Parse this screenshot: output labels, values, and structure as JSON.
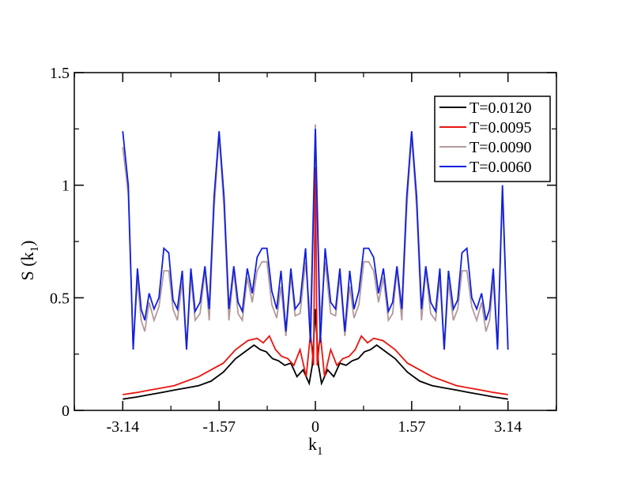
{
  "chart_data": {
    "type": "line",
    "title": "",
    "xlabel": "k",
    "xlabel_sub": "1",
    "ylabel": "S (k",
    "ylabel_sub": "1",
    "ylabel_close": ")",
    "xlim": [
      -3.93,
      3.93
    ],
    "ylim": [
      0,
      1.5
    ],
    "xticks": [
      -3.14,
      -1.57,
      0,
      1.57,
      3.14
    ],
    "xtick_labels": [
      "-3.14",
      "-1.57",
      "0",
      "1.57",
      "3.14"
    ],
    "yticks": [
      0,
      0.5,
      1,
      1.5
    ],
    "ytick_labels": [
      "0",
      "0.5",
      "1",
      "1.5"
    ],
    "grid": false,
    "legend_position": "top-right",
    "series": [
      {
        "name": "T=0.0120",
        "color": "#000000",
        "x": [
          -3.14,
          -2.9,
          -2.7,
          -2.5,
          -2.3,
          -2.1,
          -1.9,
          -1.7,
          -1.5,
          -1.3,
          -1.1,
          -1.0,
          -0.9,
          -0.8,
          -0.7,
          -0.6,
          -0.5,
          -0.4,
          -0.3,
          -0.2,
          -0.1,
          -0.05,
          0,
          0.05,
          0.1,
          0.2,
          0.3,
          0.4,
          0.5,
          0.6,
          0.7,
          0.8,
          0.9,
          1.0,
          1.1,
          1.3,
          1.5,
          1.7,
          1.9,
          2.1,
          2.3,
          2.5,
          2.7,
          2.9,
          3.14
        ],
        "y": [
          0.05,
          0.06,
          0.07,
          0.08,
          0.09,
          0.1,
          0.11,
          0.13,
          0.17,
          0.23,
          0.27,
          0.29,
          0.27,
          0.26,
          0.23,
          0.22,
          0.2,
          0.21,
          0.15,
          0.18,
          0.12,
          0.2,
          0.45,
          0.2,
          0.12,
          0.18,
          0.15,
          0.21,
          0.2,
          0.22,
          0.23,
          0.26,
          0.27,
          0.29,
          0.27,
          0.23,
          0.17,
          0.13,
          0.11,
          0.1,
          0.09,
          0.08,
          0.07,
          0.06,
          0.05
        ]
      },
      {
        "name": "T=0.0095",
        "color": "#e8160f",
        "x": [
          -3.14,
          -2.9,
          -2.7,
          -2.5,
          -2.3,
          -2.1,
          -1.9,
          -1.7,
          -1.5,
          -1.3,
          -1.1,
          -0.95,
          -0.85,
          -0.75,
          -0.65,
          -0.55,
          -0.45,
          -0.35,
          -0.25,
          -0.15,
          -0.08,
          -0.03,
          0,
          0.03,
          0.08,
          0.15,
          0.25,
          0.35,
          0.45,
          0.55,
          0.65,
          0.75,
          0.85,
          0.95,
          1.1,
          1.3,
          1.5,
          1.7,
          1.9,
          2.1,
          2.3,
          2.5,
          2.7,
          2.9,
          3.14
        ],
        "y": [
          0.07,
          0.08,
          0.09,
          0.1,
          0.11,
          0.13,
          0.15,
          0.18,
          0.21,
          0.27,
          0.31,
          0.32,
          0.3,
          0.33,
          0.27,
          0.24,
          0.23,
          0.2,
          0.27,
          0.15,
          0.34,
          0.2,
          1.08,
          0.2,
          0.34,
          0.15,
          0.27,
          0.2,
          0.23,
          0.24,
          0.27,
          0.33,
          0.3,
          0.32,
          0.31,
          0.27,
          0.21,
          0.18,
          0.15,
          0.13,
          0.11,
          0.1,
          0.09,
          0.08,
          0.07
        ]
      },
      {
        "name": "T=0.0090",
        "color": "#b39a9a",
        "x": [
          -3.14,
          -3.05,
          -2.97,
          -2.9,
          -2.84,
          -2.78,
          -2.71,
          -2.63,
          -2.55,
          -2.47,
          -2.39,
          -2.32,
          -2.25,
          -2.17,
          -2.1,
          -2.03,
          -1.96,
          -1.88,
          -1.8,
          -1.73,
          -1.65,
          -1.57,
          -1.49,
          -1.41,
          -1.33,
          -1.26,
          -1.19,
          -1.11,
          -1.03,
          -0.95,
          -0.87,
          -0.79,
          -0.71,
          -0.63,
          -0.56,
          -0.48,
          -0.4,
          -0.33,
          -0.25,
          -0.16,
          -0.08,
          0,
          0.08,
          0.16,
          0.25,
          0.33,
          0.4,
          0.48,
          0.56,
          0.63,
          0.71,
          0.79,
          0.87,
          0.95,
          1.03,
          1.11,
          1.19,
          1.26,
          1.33,
          1.41,
          1.49,
          1.57,
          1.65,
          1.73,
          1.8,
          1.88,
          1.96,
          2.03,
          2.1,
          2.17,
          2.25,
          2.32,
          2.39,
          2.47,
          2.55,
          2.63,
          2.71,
          2.78,
          2.84,
          2.9,
          2.97,
          3.05,
          3.14
        ],
        "y": [
          1.17,
          0.96,
          0.28,
          0.58,
          0.4,
          0.35,
          0.48,
          0.4,
          0.46,
          0.62,
          0.62,
          0.45,
          0.4,
          0.57,
          0.27,
          0.59,
          0.4,
          0.43,
          0.62,
          0.4,
          0.9,
          1.22,
          0.9,
          0.4,
          0.62,
          0.43,
          0.4,
          0.59,
          0.48,
          0.62,
          0.66,
          0.66,
          0.47,
          0.41,
          0.55,
          0.33,
          0.6,
          0.42,
          0.43,
          0.66,
          0.4,
          1.27,
          0.4,
          0.66,
          0.43,
          0.42,
          0.6,
          0.33,
          0.55,
          0.41,
          0.47,
          0.66,
          0.66,
          0.62,
          0.48,
          0.59,
          0.4,
          0.43,
          0.62,
          0.4,
          0.9,
          1.22,
          0.9,
          0.4,
          0.62,
          0.43,
          0.4,
          0.59,
          0.27,
          0.57,
          0.4,
          0.45,
          0.62,
          0.62,
          0.46,
          0.4,
          0.48,
          0.35,
          0.4,
          0.58,
          0.28,
          0.96,
          0.29
        ]
      },
      {
        "name": "T=0.0060",
        "color": "#0f1fe0",
        "x": [
          -3.14,
          -3.05,
          -2.97,
          -2.9,
          -2.84,
          -2.78,
          -2.71,
          -2.63,
          -2.55,
          -2.47,
          -2.39,
          -2.32,
          -2.25,
          -2.17,
          -2.1,
          -2.03,
          -1.96,
          -1.88,
          -1.8,
          -1.73,
          -1.65,
          -1.57,
          -1.49,
          -1.41,
          -1.33,
          -1.26,
          -1.19,
          -1.11,
          -1.03,
          -0.95,
          -0.87,
          -0.79,
          -0.71,
          -0.63,
          -0.56,
          -0.48,
          -0.4,
          -0.33,
          -0.25,
          -0.16,
          -0.08,
          0,
          0.08,
          0.16,
          0.25,
          0.33,
          0.4,
          0.48,
          0.56,
          0.63,
          0.71,
          0.79,
          0.87,
          0.95,
          1.03,
          1.11,
          1.19,
          1.26,
          1.33,
          1.41,
          1.49,
          1.57,
          1.65,
          1.73,
          1.8,
          1.88,
          1.96,
          2.03,
          2.1,
          2.17,
          2.25,
          2.32,
          2.39,
          2.47,
          2.55,
          2.63,
          2.71,
          2.78,
          2.84,
          2.9,
          2.97,
          3.05,
          3.14
        ],
        "y": [
          1.24,
          1.0,
          0.27,
          0.63,
          0.45,
          0.4,
          0.52,
          0.45,
          0.5,
          0.72,
          0.7,
          0.49,
          0.45,
          0.62,
          0.27,
          0.63,
          0.44,
          0.48,
          0.64,
          0.45,
          0.95,
          1.24,
          0.95,
          0.45,
          0.64,
          0.48,
          0.44,
          0.63,
          0.52,
          0.68,
          0.72,
          0.72,
          0.53,
          0.45,
          0.62,
          0.35,
          0.63,
          0.45,
          0.48,
          0.72,
          0.3,
          1.25,
          0.3,
          0.72,
          0.48,
          0.45,
          0.63,
          0.35,
          0.62,
          0.45,
          0.53,
          0.72,
          0.72,
          0.68,
          0.52,
          0.63,
          0.44,
          0.48,
          0.64,
          0.45,
          0.95,
          1.24,
          0.95,
          0.45,
          0.64,
          0.48,
          0.44,
          0.63,
          0.27,
          0.62,
          0.45,
          0.49,
          0.7,
          0.72,
          0.5,
          0.45,
          0.52,
          0.4,
          0.45,
          0.63,
          0.27,
          1.0,
          0.27
        ]
      }
    ]
  }
}
